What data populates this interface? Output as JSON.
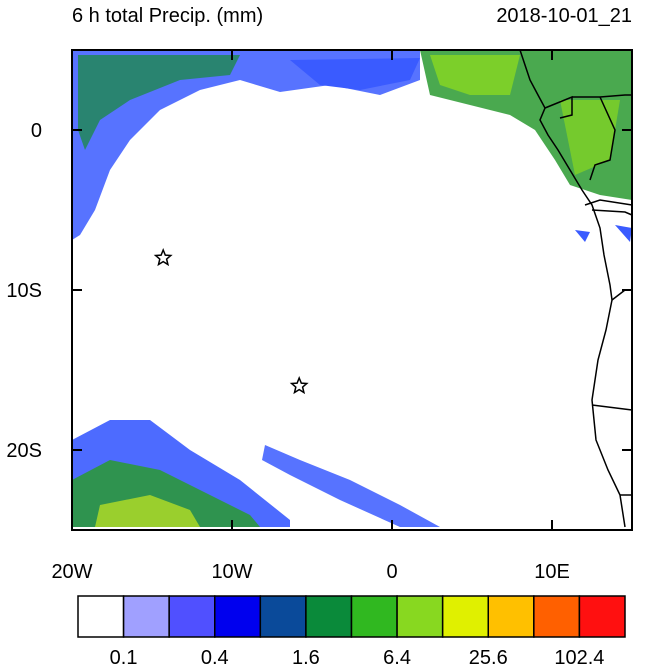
{
  "map": {
    "title": "6 h total Precip. (mm)",
    "valid_time": "2018-10-01_21",
    "xlim": [
      -20,
      15
    ],
    "ylim": [
      -25,
      5
    ],
    "xticks": [
      {
        "value": -20,
        "label": "20W"
      },
      {
        "value": -10,
        "label": "10W"
      },
      {
        "value": 0,
        "label": "0"
      },
      {
        "value": 10,
        "label": "10E"
      }
    ],
    "yticks": [
      {
        "value": 0,
        "label": "0"
      },
      {
        "value": -10,
        "label": "10S"
      },
      {
        "value": -20,
        "label": "20S"
      }
    ],
    "colorbar": {
      "colors": [
        "#ffffff",
        "#a0a0ff",
        "#5050ff",
        "#0000ee",
        "#0a4a9a",
        "#0a8a3a",
        "#30b820",
        "#88d820",
        "#e0f000",
        "#ffc000",
        "#ff6000",
        "#ff1010"
      ],
      "levels": [
        {
          "value": 0.1,
          "label": "0.1"
        },
        {
          "value": 0.4,
          "label": "0.4"
        },
        {
          "value": 1.6,
          "label": "1.6"
        },
        {
          "value": 6.4,
          "label": "6.4"
        },
        {
          "value": 25.6,
          "label": "25.6"
        },
        {
          "value": 102.4,
          "label": "102.4"
        }
      ]
    },
    "markers": [
      {
        "lon": -14.3,
        "lat": -8
      },
      {
        "lon": -5.8,
        "lat": -16
      }
    ]
  }
}
